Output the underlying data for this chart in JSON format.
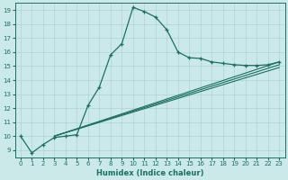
{
  "title": "",
  "xlabel": "Humidex (Indice chaleur)",
  "ylabel": "",
  "bg_color": "#cce9e9",
  "line_color": "#1a7060",
  "grid_color": "#aad4d4",
  "xlim": [
    -0.5,
    23.5
  ],
  "ylim": [
    8.5,
    19.5
  ],
  "yticks": [
    9,
    10,
    11,
    12,
    13,
    14,
    15,
    16,
    17,
    18,
    19
  ],
  "xticks": [
    0,
    1,
    2,
    3,
    4,
    5,
    6,
    7,
    8,
    9,
    10,
    11,
    12,
    13,
    14,
    15,
    16,
    17,
    18,
    19,
    20,
    21,
    22,
    23
  ],
  "series1_x": [
    0,
    1,
    2,
    3,
    4,
    5,
    6,
    7,
    8,
    9,
    10,
    11,
    12,
    13,
    14,
    15,
    16,
    17,
    18,
    19,
    20,
    21,
    22,
    23
  ],
  "series1_y": [
    10.0,
    8.8,
    9.4,
    9.9,
    10.0,
    10.1,
    12.2,
    13.5,
    15.8,
    16.6,
    19.2,
    18.9,
    18.5,
    17.6,
    16.0,
    15.6,
    15.55,
    15.3,
    15.2,
    15.1,
    15.05,
    15.05,
    15.1,
    15.3
  ],
  "series2_x": [
    3,
    23
  ],
  "series2_y": [
    10.0,
    15.3
  ],
  "series3_x": [
    3,
    23
  ],
  "series3_y": [
    10.0,
    15.1
  ],
  "series4_x": [
    3,
    23
  ],
  "series4_y": [
    10.0,
    14.9
  ]
}
